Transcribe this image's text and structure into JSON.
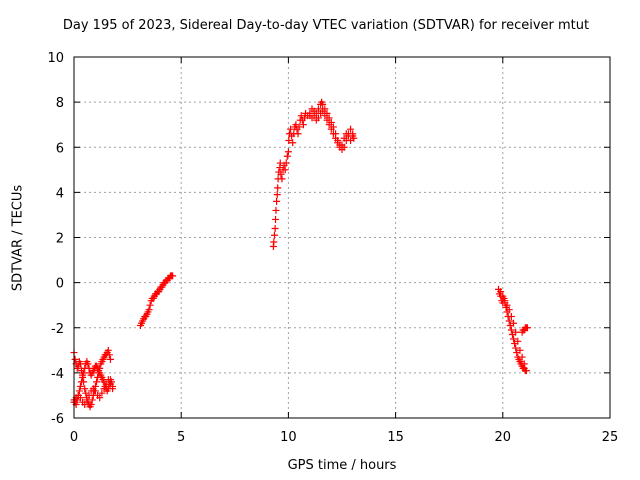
{
  "chart_data": {
    "type": "scatter",
    "title": "Day 195 of 2023, Sidereal Day-to-day VTEC variation (SDTVAR) for receiver mtut",
    "xlabel": "GPS time / hours",
    "ylabel": "SDTVAR / TECUs",
    "xlim": [
      0,
      25
    ],
    "ylim": [
      -6,
      10
    ],
    "xticks": [
      0,
      5,
      10,
      15,
      20,
      25
    ],
    "yticks": [
      -6,
      -4,
      -2,
      0,
      2,
      4,
      6,
      8,
      10
    ],
    "grid": true,
    "marker": "+",
    "color": "#ff0000",
    "series": [
      {
        "name": "SDTVAR",
        "segments": [
          [
            [
              0.0,
              -3.1
            ],
            [
              0.05,
              -3.4
            ],
            [
              0.1,
              -3.6
            ],
            [
              0.15,
              -3.8
            ],
            [
              0.2,
              -3.7
            ],
            [
              0.25,
              -3.5
            ],
            [
              0.3,
              -3.6
            ],
            [
              0.35,
              -3.9
            ],
            [
              0.4,
              -4.1
            ],
            [
              0.45,
              -4.4
            ],
            [
              0.5,
              -4.7
            ],
            [
              0.55,
              -4.9
            ],
            [
              0.6,
              -5.1
            ],
            [
              0.65,
              -5.3
            ],
            [
              0.7,
              -5.4
            ],
            [
              0.75,
              -5.5
            ],
            [
              0.8,
              -5.4
            ],
            [
              0.85,
              -5.2
            ],
            [
              0.9,
              -5.0
            ],
            [
              0.95,
              -4.8
            ],
            [
              1.0,
              -4.6
            ],
            [
              1.05,
              -4.4
            ],
            [
              1.1,
              -4.2
            ],
            [
              1.15,
              -4.0
            ],
            [
              1.2,
              -3.8
            ],
            [
              1.25,
              -3.6
            ],
            [
              1.3,
              -3.5
            ],
            [
              1.35,
              -3.4
            ],
            [
              1.4,
              -3.3
            ],
            [
              1.45,
              -3.2
            ],
            [
              1.5,
              -3.2
            ],
            [
              1.55,
              -3.1
            ],
            [
              1.6,
              -3.0
            ],
            [
              1.65,
              -3.2
            ],
            [
              1.7,
              -3.4
            ]
          ],
          [
            [
              0.0,
              -5.2
            ],
            [
              0.05,
              -5.3
            ],
            [
              0.1,
              -5.4
            ],
            [
              0.15,
              -5.2
            ],
            [
              0.2,
              -5.0
            ],
            [
              0.25,
              -4.8
            ],
            [
              0.3,
              -4.6
            ],
            [
              0.35,
              -4.4
            ],
            [
              0.4,
              -4.2
            ],
            [
              0.45,
              -4.0
            ],
            [
              0.5,
              -3.8
            ],
            [
              0.55,
              -3.6
            ],
            [
              0.6,
              -3.5
            ],
            [
              0.65,
              -3.6
            ],
            [
              0.7,
              -3.8
            ],
            [
              0.75,
              -4.0
            ],
            [
              0.8,
              -4.1
            ],
            [
              0.85,
              -4.0
            ],
            [
              0.9,
              -3.9
            ],
            [
              0.95,
              -3.8
            ],
            [
              1.0,
              -3.7
            ],
            [
              1.05,
              -3.7
            ],
            [
              1.1,
              -3.8
            ],
            [
              1.15,
              -3.9
            ],
            [
              1.2,
              -4.0
            ],
            [
              1.25,
              -4.1
            ],
            [
              1.3,
              -4.2
            ],
            [
              1.35,
              -4.3
            ],
            [
              1.4,
              -4.4
            ],
            [
              1.45,
              -4.6
            ],
            [
              1.5,
              -4.7
            ],
            [
              1.55,
              -4.8
            ],
            [
              1.6,
              -4.7
            ],
            [
              1.65,
              -4.5
            ],
            [
              1.7,
              -4.3
            ],
            [
              1.75,
              -4.4
            ],
            [
              1.8,
              -4.6
            ]
          ],
          [
            [
              0.0,
              -5.3
            ],
            [
              0.05,
              -5.2
            ],
            [
              0.1,
              -5.1
            ],
            [
              0.2,
              -5.0
            ],
            [
              0.3,
              -5.1
            ],
            [
              0.4,
              -5.3
            ],
            [
              0.5,
              -5.4
            ],
            [
              0.6,
              -5.2
            ],
            [
              0.7,
              -5.0
            ],
            [
              0.8,
              -4.8
            ],
            [
              0.9,
              -4.7
            ],
            [
              1.0,
              -4.8
            ],
            [
              1.1,
              -5.0
            ],
            [
              1.2,
              -5.1
            ],
            [
              1.3,
              -4.9
            ],
            [
              1.4,
              -4.7
            ],
            [
              1.5,
              -4.5
            ],
            [
              1.6,
              -4.3
            ],
            [
              1.7,
              -4.5
            ],
            [
              1.8,
              -4.7
            ]
          ],
          [
            [
              3.1,
              -1.9
            ],
            [
              3.15,
              -1.8
            ],
            [
              3.2,
              -1.7
            ],
            [
              3.25,
              -1.6
            ],
            [
              3.3,
              -1.5
            ],
            [
              3.35,
              -1.5
            ],
            [
              3.4,
              -1.4
            ],
            [
              3.45,
              -1.3
            ],
            [
              3.5,
              -1.2
            ],
            [
              3.55,
              -1.0
            ],
            [
              3.6,
              -0.8
            ],
            [
              3.65,
              -0.7
            ],
            [
              3.7,
              -0.7
            ],
            [
              3.75,
              -0.6
            ],
            [
              3.8,
              -0.5
            ],
            [
              3.85,
              -0.5
            ],
            [
              3.9,
              -0.4
            ],
            [
              3.95,
              -0.4
            ],
            [
              4.0,
              -0.3
            ],
            [
              4.05,
              -0.2
            ],
            [
              4.1,
              -0.2
            ],
            [
              4.15,
              -0.1
            ],
            [
              4.2,
              0.0
            ],
            [
              4.25,
              0.0
            ],
            [
              4.3,
              0.1
            ],
            [
              4.35,
              0.1
            ],
            [
              4.4,
              0.2
            ],
            [
              4.45,
              0.2
            ],
            [
              4.5,
              0.3
            ],
            [
              4.55,
              0.3
            ],
            [
              4.6,
              0.3
            ]
          ],
          [
            [
              9.3,
              1.6
            ],
            [
              9.32,
              1.8
            ],
            [
              9.35,
              2.1
            ],
            [
              9.38,
              2.4
            ],
            [
              9.4,
              2.8
            ],
            [
              9.42,
              3.2
            ],
            [
              9.45,
              3.6
            ],
            [
              9.48,
              3.9
            ],
            [
              9.5,
              4.2
            ],
            [
              9.52,
              4.6
            ],
            [
              9.55,
              4.9
            ],
            [
              9.6,
              5.1
            ],
            [
              9.62,
              5.3
            ],
            [
              9.65,
              4.8
            ],
            [
              9.7,
              4.6
            ],
            [
              9.75,
              5.0
            ],
            [
              9.8,
              5.2
            ],
            [
              9.85,
              5.0
            ],
            [
              9.9,
              5.3
            ],
            [
              9.95,
              5.6
            ],
            [
              10.0,
              5.8
            ],
            [
              10.02,
              6.3
            ],
            [
              10.05,
              6.6
            ],
            [
              10.1,
              6.8
            ],
            [
              10.15,
              6.5
            ],
            [
              10.2,
              6.2
            ],
            [
              10.25,
              6.6
            ],
            [
              10.3,
              6.9
            ],
            [
              10.35,
              7.0
            ],
            [
              10.4,
              6.8
            ],
            [
              10.45,
              6.6
            ],
            [
              10.5,
              6.9
            ],
            [
              10.55,
              7.2
            ],
            [
              10.6,
              7.4
            ],
            [
              10.65,
              7.2
            ],
            [
              10.7,
              7.0
            ],
            [
              10.75,
              7.3
            ],
            [
              10.8,
              7.5
            ],
            [
              10.9,
              7.4
            ],
            [
              11.0,
              7.5
            ],
            [
              11.1,
              7.7
            ],
            [
              11.2,
              7.6
            ],
            [
              11.3,
              7.5
            ],
            [
              11.4,
              7.7
            ],
            [
              11.5,
              7.9
            ],
            [
              11.55,
              8.0
            ],
            [
              11.6,
              7.9
            ],
            [
              11.7,
              7.7
            ],
            [
              11.8,
              7.5
            ],
            [
              11.9,
              7.3
            ],
            [
              12.0,
              7.1
            ],
            [
              12.1,
              6.9
            ],
            [
              12.2,
              6.6
            ],
            [
              12.3,
              6.3
            ],
            [
              12.4,
              6.1
            ],
            [
              12.5,
              5.9
            ],
            [
              12.6,
              6.0
            ],
            [
              12.7,
              6.3
            ],
            [
              12.8,
              6.6
            ],
            [
              12.9,
              6.8
            ],
            [
              13.0,
              6.5
            ],
            [
              13.05,
              6.4
            ]
          ],
          [
            [
              11.0,
              7.4
            ],
            [
              11.1,
              7.3
            ],
            [
              11.2,
              7.4
            ],
            [
              11.3,
              7.2
            ],
            [
              11.4,
              7.3
            ],
            [
              11.5,
              7.5
            ],
            [
              11.6,
              7.6
            ],
            [
              11.7,
              7.4
            ],
            [
              11.8,
              7.2
            ],
            [
              11.9,
              7.0
            ],
            [
              12.0,
              6.8
            ],
            [
              12.1,
              6.6
            ],
            [
              12.2,
              6.4
            ],
            [
              12.3,
              6.2
            ],
            [
              12.4,
              6.0
            ],
            [
              12.5,
              6.1
            ],
            [
              12.6,
              6.4
            ],
            [
              12.7,
              6.6
            ],
            [
              12.8,
              6.5
            ],
            [
              12.9,
              6.3
            ],
            [
              13.0,
              6.6
            ]
          ],
          [
            [
              19.8,
              -0.3
            ],
            [
              19.85,
              -0.5
            ],
            [
              19.9,
              -0.6
            ],
            [
              19.95,
              -0.8
            ],
            [
              20.0,
              -0.9
            ],
            [
              20.05,
              -0.7
            ],
            [
              20.1,
              -0.9
            ],
            [
              20.15,
              -1.1
            ],
            [
              20.2,
              -1.3
            ],
            [
              20.25,
              -1.5
            ],
            [
              20.3,
              -1.7
            ],
            [
              20.35,
              -1.9
            ],
            [
              20.4,
              -2.1
            ],
            [
              20.45,
              -2.3
            ],
            [
              20.5,
              -2.5
            ],
            [
              20.55,
              -2.7
            ],
            [
              20.6,
              -2.9
            ],
            [
              20.65,
              -3.1
            ],
            [
              20.7,
              -3.3
            ],
            [
              20.75,
              -3.4
            ],
            [
              20.8,
              -3.5
            ],
            [
              20.85,
              -3.6
            ],
            [
              20.9,
              -3.7
            ],
            [
              20.95,
              -3.8
            ],
            [
              21.0,
              -3.8
            ],
            [
              21.05,
              -3.9
            ],
            [
              21.1,
              -3.9
            ]
          ],
          [
            [
              19.9,
              -0.4
            ],
            [
              20.0,
              -0.6
            ],
            [
              20.1,
              -0.8
            ],
            [
              20.2,
              -1.0
            ],
            [
              20.3,
              -1.2
            ],
            [
              20.4,
              -1.5
            ],
            [
              20.5,
              -1.8
            ],
            [
              20.6,
              -2.2
            ],
            [
              20.7,
              -2.6
            ],
            [
              20.8,
              -3.0
            ],
            [
              20.9,
              -3.3
            ],
            [
              21.0,
              -3.6
            ]
          ],
          [
            [
              20.9,
              -2.2
            ],
            [
              20.95,
              -2.1
            ],
            [
              21.0,
              -2.1
            ],
            [
              21.05,
              -2.0
            ],
            [
              21.1,
              -2.0
            ],
            [
              21.15,
              -2.0
            ]
          ]
        ]
      }
    ]
  }
}
